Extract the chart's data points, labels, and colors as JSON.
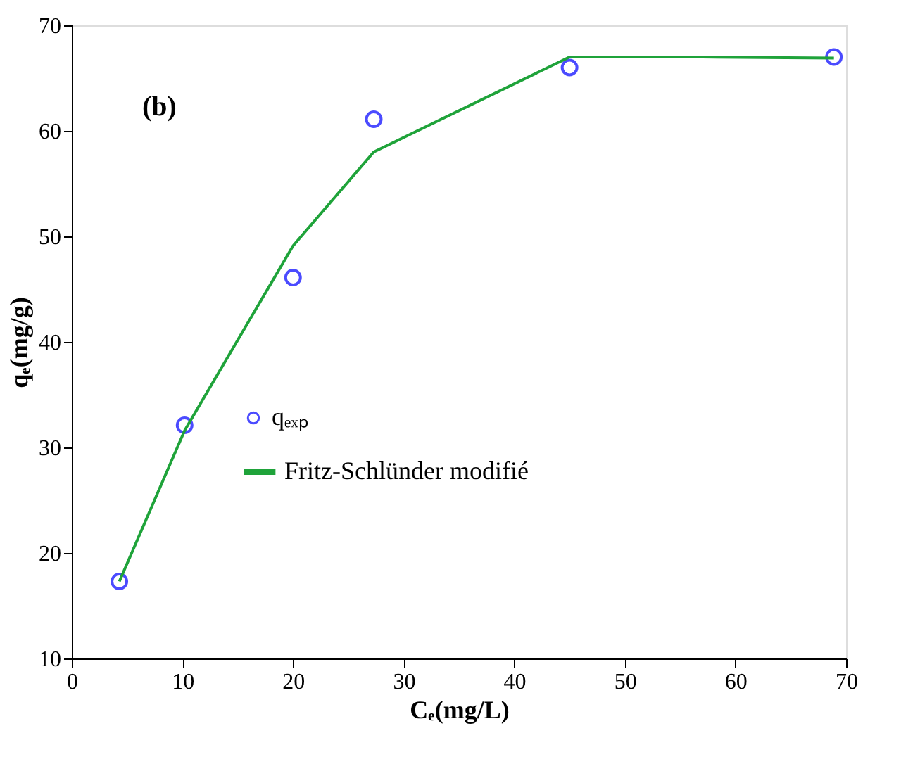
{
  "chart_data": {
    "type": "scatter",
    "xlabel": "Cₑ(mg/L)",
    "ylabel": "qₑ(mg/g)",
    "annotations": [
      "(b)"
    ],
    "xlim": [
      0,
      70
    ],
    "ylim": [
      10,
      70
    ],
    "xticks": [
      0,
      10,
      20,
      30,
      40,
      50,
      60,
      70
    ],
    "yticks": [
      10,
      20,
      30,
      40,
      50,
      60,
      70
    ],
    "grid": false,
    "legend": "left",
    "series": [
      {
        "name": "qₑₓₚ",
        "marker": "circle",
        "color": "#0000ff",
        "x": [
          4.3,
          10.2,
          20.0,
          27.3,
          45.0,
          68.9
        ],
        "values": [
          17.3,
          32.1,
          46.1,
          61.1,
          66.0,
          67.0
        ]
      },
      {
        "name": "Fritz-Schlünder modifié",
        "type": "line",
        "marker": "none",
        "line_style": "solid",
        "color": "#1fa33a",
        "x": [
          4.3,
          10.2,
          20.0,
          27.3,
          45.0,
          57.0,
          68.9
        ],
        "values": [
          17.3,
          31.6,
          49.1,
          58.0,
          67.0,
          67.0,
          66.9
        ]
      }
    ]
  }
}
